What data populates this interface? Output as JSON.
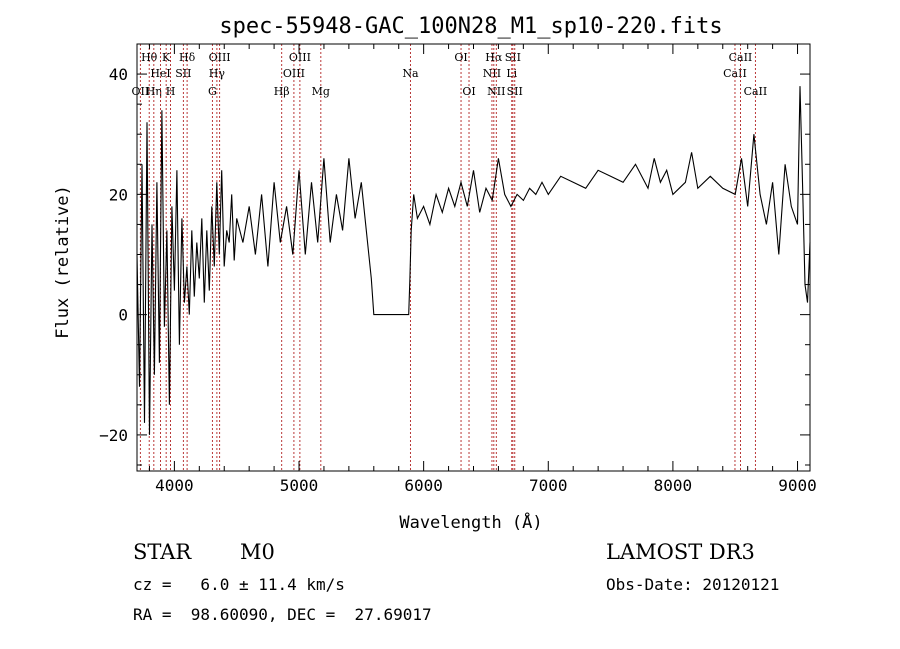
{
  "chart_data": {
    "type": "line",
    "title": "spec-55948-GAC_100N28_M1_sp10-220.fits",
    "xlabel": "Wavelength (Å)",
    "ylabel": "Flux (relative)",
    "xlim": [
      3700,
      9100
    ],
    "ylim": [
      -26,
      45
    ],
    "xticks": [
      4000,
      5000,
      6000,
      7000,
      8000,
      9000
    ],
    "yticks": [
      -20,
      0,
      20,
      40
    ],
    "grid": false,
    "line_color": "#000000",
    "marker_color": "#b22222",
    "spectral_lines": [
      {
        "label": "OII",
        "wavelength": 3727,
        "row": 3
      },
      {
        "label": "Hθ",
        "wavelength": 3798,
        "row": 1
      },
      {
        "label": "Hη",
        "wavelength": 3835,
        "row": 3
      },
      {
        "label": "HeI",
        "wavelength": 3889,
        "row": 2
      },
      {
        "label": "K",
        "wavelength": 3934,
        "row": 1
      },
      {
        "label": "H",
        "wavelength": 3969,
        "row": 3
      },
      {
        "label": "SII",
        "wavelength": 4072,
        "row": 2
      },
      {
        "label": "Hδ",
        "wavelength": 4102,
        "row": 1
      },
      {
        "label": "G",
        "wavelength": 4305,
        "row": 3
      },
      {
        "label": "Hγ",
        "wavelength": 4341,
        "row": 2
      },
      {
        "label": "OIII",
        "wavelength": 4363,
        "row": 1
      },
      {
        "label": "Hβ",
        "wavelength": 4861,
        "row": 3
      },
      {
        "label": "OIII",
        "wavelength": 4959,
        "row": 2
      },
      {
        "label": "OIII",
        "wavelength": 5007,
        "row": 1
      },
      {
        "label": "Mg",
        "wavelength": 5175,
        "row": 3
      },
      {
        "label": "Na",
        "wavelength": 5894,
        "row": 2
      },
      {
        "label": "OI",
        "wavelength": 6300,
        "row": 1
      },
      {
        "label": "OI",
        "wavelength": 6364,
        "row": 3
      },
      {
        "label": "NII",
        "wavelength": 6548,
        "row": 2
      },
      {
        "label": "Hα",
        "wavelength": 6563,
        "row": 1
      },
      {
        "label": "NII",
        "wavelength": 6583,
        "row": 3
      },
      {
        "label": "Li",
        "wavelength": 6707,
        "row": 2
      },
      {
        "label": "SII",
        "wavelength": 6716,
        "row": 1
      },
      {
        "label": "SII",
        "wavelength": 6731,
        "row": 3
      },
      {
        "label": "CaII",
        "wavelength": 8498,
        "row": 2
      },
      {
        "label": "CaII",
        "wavelength": 8542,
        "row": 1
      },
      {
        "label": "CaII",
        "wavelength": 8662,
        "row": 3
      }
    ],
    "series": [
      {
        "name": "flux",
        "x": [
          3700,
          3720,
          3740,
          3760,
          3780,
          3800,
          3820,
          3840,
          3860,
          3880,
          3900,
          3920,
          3940,
          3960,
          3980,
          4000,
          4020,
          4040,
          4060,
          4080,
          4100,
          4120,
          4140,
          4160,
          4180,
          4200,
          4220,
          4240,
          4260,
          4280,
          4300,
          4320,
          4340,
          4360,
          4380,
          4400,
          4420,
          4440,
          4460,
          4480,
          4500,
          4550,
          4600,
          4650,
          4700,
          4750,
          4800,
          4850,
          4900,
          4950,
          5000,
          5050,
          5100,
          5150,
          5200,
          5250,
          5300,
          5350,
          5400,
          5450,
          5500,
          5540,
          5560,
          5580,
          5600,
          5880,
          5890,
          5900,
          5920,
          5950,
          6000,
          6050,
          6100,
          6150,
          6200,
          6250,
          6300,
          6350,
          6400,
          6450,
          6500,
          6550,
          6600,
          6650,
          6700,
          6750,
          6800,
          6850,
          6900,
          6950,
          7000,
          7100,
          7200,
          7300,
          7400,
          7500,
          7600,
          7700,
          7800,
          7850,
          7900,
          7950,
          8000,
          8100,
          8150,
          8200,
          8300,
          8400,
          8500,
          8550,
          8600,
          8650,
          8700,
          8750,
          8800,
          8850,
          8900,
          8950,
          9000,
          9020,
          9040,
          9060,
          9080,
          9100
        ],
        "values": [
          10,
          -12,
          25,
          -18,
          32,
          -20,
          15,
          -10,
          22,
          -8,
          34,
          -2,
          14,
          -15,
          18,
          4,
          24,
          -5,
          16,
          2,
          8,
          0,
          14,
          3,
          12,
          6,
          16,
          2,
          14,
          4,
          18,
          8,
          22,
          10,
          24,
          8,
          14,
          12,
          20,
          9,
          16,
          12,
          18,
          10,
          20,
          8,
          22,
          12,
          18,
          10,
          24,
          10,
          22,
          12,
          26,
          12,
          20,
          14,
          26,
          16,
          22,
          14,
          10,
          6,
          0,
          0,
          6,
          14,
          20,
          16,
          18,
          15,
          20,
          17,
          21,
          18,
          22,
          18,
          24,
          17,
          21,
          19,
          26,
          20,
          18,
          20,
          19,
          21,
          20,
          22,
          20,
          23,
          22,
          21,
          24,
          23,
          22,
          25,
          21,
          26,
          22,
          24,
          20,
          22,
          27,
          21,
          23,
          21,
          20,
          26,
          18,
          30,
          20,
          15,
          22,
          10,
          25,
          18,
          15,
          38,
          22,
          5,
          2,
          12
        ]
      }
    ],
    "annotations": {
      "object_class": "STAR",
      "subclass": "M0",
      "survey": "LAMOST DR3",
      "redshift_line": "cz =   6.0 ± 11.4 km/s",
      "obs_date_line": "Obs-Date: 20120121",
      "coords_line": "RA =  98.60090, DEC =  27.69017"
    }
  }
}
